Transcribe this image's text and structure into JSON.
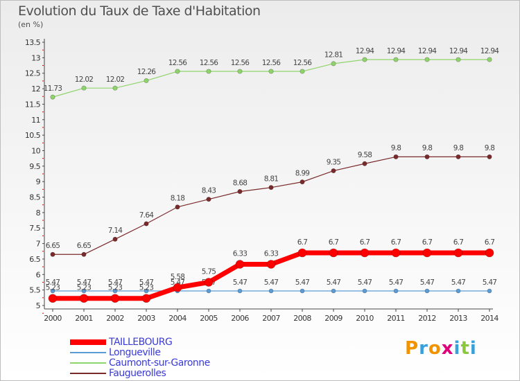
{
  "header": {
    "title": "Evolution du Taux de Taxe d'Habitation",
    "unit": "(en %)"
  },
  "logo": {
    "text": "Proxiti",
    "colors": [
      "#f29400",
      "#3aa0dc",
      "#f29400",
      "#e0007a",
      "#3aa0dc",
      "#8dc63f",
      "#3aa0dc"
    ]
  },
  "chart_data": {
    "type": "line",
    "x": [
      "2000",
      "2001",
      "2002",
      "2003",
      "2004",
      "2005",
      "2006",
      "2007",
      "2008",
      "2009",
      "2010",
      "2011",
      "2012",
      "2013",
      "2014"
    ],
    "yticks": [
      5,
      5.5,
      6,
      6.5,
      7,
      7.5,
      8,
      8.5,
      9,
      9.5,
      10,
      10.5,
      11,
      11.5,
      12,
      12.5,
      13,
      13.5
    ],
    "ylim": [
      5,
      13.5
    ],
    "grid": false,
    "legend_position": "bottom-left",
    "series": [
      {
        "name": "Longueville",
        "color": "#5b9bd5",
        "width": 1.2,
        "marker": 3,
        "labels": true,
        "values": [
          5.47,
          5.47,
          5.47,
          5.47,
          5.47,
          5.47,
          5.47,
          5.47,
          5.47,
          5.47,
          5.47,
          5.47,
          5.47,
          5.47,
          5.47
        ]
      },
      {
        "name": "Caumont-sur-Garonne",
        "color": "#8fd46a",
        "width": 1.2,
        "marker": 3.2,
        "labels": true,
        "values": [
          11.73,
          12.02,
          12.02,
          12.26,
          12.56,
          12.56,
          12.56,
          12.56,
          12.56,
          12.81,
          12.94,
          12.94,
          12.94,
          12.94,
          12.94
        ]
      },
      {
        "name": "Fauguerolles",
        "color": "#7a2a2a",
        "width": 1.2,
        "marker": 3.2,
        "labels": true,
        "values": [
          6.65,
          6.65,
          7.14,
          7.64,
          8.18,
          8.43,
          8.68,
          8.81,
          8.99,
          9.35,
          9.58,
          9.8,
          9.8,
          9.8,
          9.8
        ]
      },
      {
        "name": "TAILLEBOURG",
        "color": "#ff0000",
        "width": 7,
        "marker": 6,
        "labels": true,
        "values": [
          5.23,
          5.23,
          5.23,
          5.23,
          5.58,
          5.75,
          6.33,
          6.33,
          6.7,
          6.7,
          6.7,
          6.7,
          6.7,
          6.7,
          6.7
        ]
      }
    ],
    "legend_order": [
      "TAILLEBOURG",
      "Longueville",
      "Caumont-sur-Garonne",
      "Fauguerolles"
    ]
  }
}
